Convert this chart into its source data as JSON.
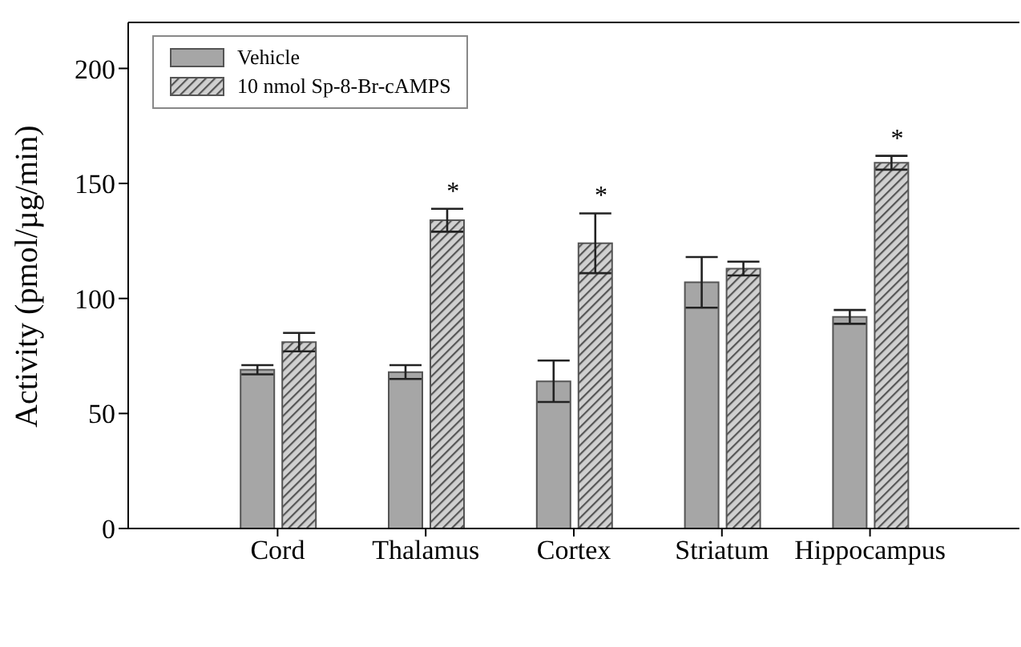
{
  "chart_data": {
    "type": "bar",
    "ylabel": "Activity (pmol/µg/min)",
    "categories": [
      "Cord",
      "Thalamus",
      "Cortex",
      "Striatum",
      "Hippocampus"
    ],
    "series": [
      {
        "name": "Vehicle",
        "color": "#a6a6a6",
        "values": [
          69,
          68,
          64,
          107,
          92
        ],
        "errors": [
          2,
          3,
          9,
          11,
          3
        ]
      },
      {
        "name": "10 nmol Sp-8-Br-cAMPS",
        "color": "#555555",
        "values": [
          81,
          134,
          124,
          113,
          159
        ],
        "errors": [
          4,
          5,
          13,
          3,
          3
        ]
      }
    ],
    "ylim": [
      0,
      220
    ],
    "yticks": [
      0,
      50,
      100,
      150,
      200
    ],
    "grid": false,
    "legend": "top left",
    "annotations": [
      {
        "text": "*",
        "x": "Thalamus",
        "y": 139
      },
      {
        "text": "*",
        "x": "Cortex",
        "y": 137
      },
      {
        "text": "*",
        "x": "Hippocampus",
        "y": 162
      }
    ]
  }
}
